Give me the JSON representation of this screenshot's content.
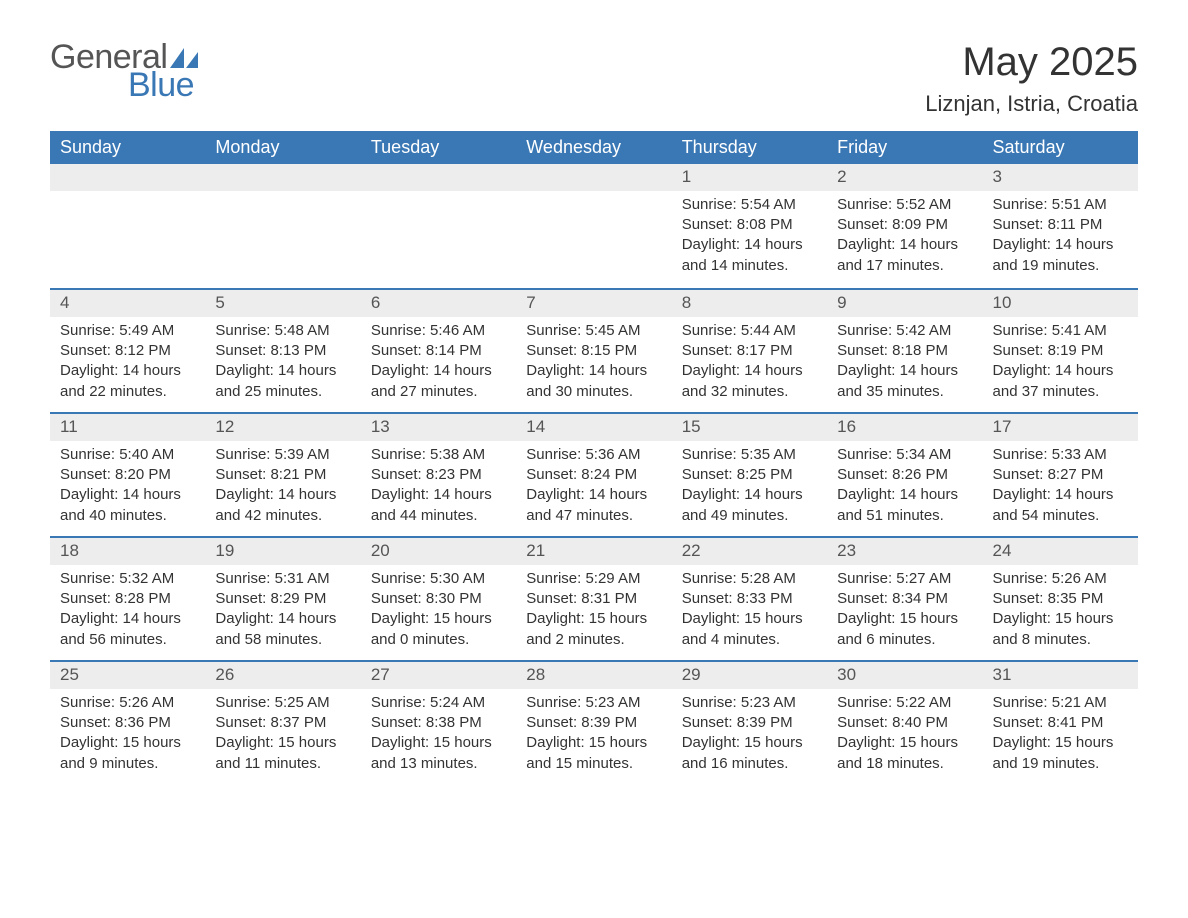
{
  "brand": {
    "general": "General",
    "blue": "Blue",
    "sail_color": "#3a78b5"
  },
  "title": "May 2025",
  "location": "Liznjan, Istria, Croatia",
  "colors": {
    "header_bg": "#3a78b5",
    "header_text": "#ffffff",
    "daynum_bg": "#ededed",
    "text": "#333333",
    "week_border": "#3a78b5",
    "background": "#ffffff"
  },
  "typography": {
    "title_fontsize": 40,
    "subtitle_fontsize": 22,
    "header_cell_fontsize": 18,
    "daynum_fontsize": 17,
    "body_fontsize": 15,
    "font_family": "Arial"
  },
  "layout": {
    "columns": 7,
    "rows": 5,
    "first_day_column": 4
  },
  "day_headers": [
    "Sunday",
    "Monday",
    "Tuesday",
    "Wednesday",
    "Thursday",
    "Friday",
    "Saturday"
  ],
  "weeks": [
    [
      null,
      null,
      null,
      null,
      {
        "n": "1",
        "sunrise": "Sunrise: 5:54 AM",
        "sunset": "Sunset: 8:08 PM",
        "day1": "Daylight: 14 hours",
        "day2": "and 14 minutes."
      },
      {
        "n": "2",
        "sunrise": "Sunrise: 5:52 AM",
        "sunset": "Sunset: 8:09 PM",
        "day1": "Daylight: 14 hours",
        "day2": "and 17 minutes."
      },
      {
        "n": "3",
        "sunrise": "Sunrise: 5:51 AM",
        "sunset": "Sunset: 8:11 PM",
        "day1": "Daylight: 14 hours",
        "day2": "and 19 minutes."
      }
    ],
    [
      {
        "n": "4",
        "sunrise": "Sunrise: 5:49 AM",
        "sunset": "Sunset: 8:12 PM",
        "day1": "Daylight: 14 hours",
        "day2": "and 22 minutes."
      },
      {
        "n": "5",
        "sunrise": "Sunrise: 5:48 AM",
        "sunset": "Sunset: 8:13 PM",
        "day1": "Daylight: 14 hours",
        "day2": "and 25 minutes."
      },
      {
        "n": "6",
        "sunrise": "Sunrise: 5:46 AM",
        "sunset": "Sunset: 8:14 PM",
        "day1": "Daylight: 14 hours",
        "day2": "and 27 minutes."
      },
      {
        "n": "7",
        "sunrise": "Sunrise: 5:45 AM",
        "sunset": "Sunset: 8:15 PM",
        "day1": "Daylight: 14 hours",
        "day2": "and 30 minutes."
      },
      {
        "n": "8",
        "sunrise": "Sunrise: 5:44 AM",
        "sunset": "Sunset: 8:17 PM",
        "day1": "Daylight: 14 hours",
        "day2": "and 32 minutes."
      },
      {
        "n": "9",
        "sunrise": "Sunrise: 5:42 AM",
        "sunset": "Sunset: 8:18 PM",
        "day1": "Daylight: 14 hours",
        "day2": "and 35 minutes."
      },
      {
        "n": "10",
        "sunrise": "Sunrise: 5:41 AM",
        "sunset": "Sunset: 8:19 PM",
        "day1": "Daylight: 14 hours",
        "day2": "and 37 minutes."
      }
    ],
    [
      {
        "n": "11",
        "sunrise": "Sunrise: 5:40 AM",
        "sunset": "Sunset: 8:20 PM",
        "day1": "Daylight: 14 hours",
        "day2": "and 40 minutes."
      },
      {
        "n": "12",
        "sunrise": "Sunrise: 5:39 AM",
        "sunset": "Sunset: 8:21 PM",
        "day1": "Daylight: 14 hours",
        "day2": "and 42 minutes."
      },
      {
        "n": "13",
        "sunrise": "Sunrise: 5:38 AM",
        "sunset": "Sunset: 8:23 PM",
        "day1": "Daylight: 14 hours",
        "day2": "and 44 minutes."
      },
      {
        "n": "14",
        "sunrise": "Sunrise: 5:36 AM",
        "sunset": "Sunset: 8:24 PM",
        "day1": "Daylight: 14 hours",
        "day2": "and 47 minutes."
      },
      {
        "n": "15",
        "sunrise": "Sunrise: 5:35 AM",
        "sunset": "Sunset: 8:25 PM",
        "day1": "Daylight: 14 hours",
        "day2": "and 49 minutes."
      },
      {
        "n": "16",
        "sunrise": "Sunrise: 5:34 AM",
        "sunset": "Sunset: 8:26 PM",
        "day1": "Daylight: 14 hours",
        "day2": "and 51 minutes."
      },
      {
        "n": "17",
        "sunrise": "Sunrise: 5:33 AM",
        "sunset": "Sunset: 8:27 PM",
        "day1": "Daylight: 14 hours",
        "day2": "and 54 minutes."
      }
    ],
    [
      {
        "n": "18",
        "sunrise": "Sunrise: 5:32 AM",
        "sunset": "Sunset: 8:28 PM",
        "day1": "Daylight: 14 hours",
        "day2": "and 56 minutes."
      },
      {
        "n": "19",
        "sunrise": "Sunrise: 5:31 AM",
        "sunset": "Sunset: 8:29 PM",
        "day1": "Daylight: 14 hours",
        "day2": "and 58 minutes."
      },
      {
        "n": "20",
        "sunrise": "Sunrise: 5:30 AM",
        "sunset": "Sunset: 8:30 PM",
        "day1": "Daylight: 15 hours",
        "day2": "and 0 minutes."
      },
      {
        "n": "21",
        "sunrise": "Sunrise: 5:29 AM",
        "sunset": "Sunset: 8:31 PM",
        "day1": "Daylight: 15 hours",
        "day2": "and 2 minutes."
      },
      {
        "n": "22",
        "sunrise": "Sunrise: 5:28 AM",
        "sunset": "Sunset: 8:33 PM",
        "day1": "Daylight: 15 hours",
        "day2": "and 4 minutes."
      },
      {
        "n": "23",
        "sunrise": "Sunrise: 5:27 AM",
        "sunset": "Sunset: 8:34 PM",
        "day1": "Daylight: 15 hours",
        "day2": "and 6 minutes."
      },
      {
        "n": "24",
        "sunrise": "Sunrise: 5:26 AM",
        "sunset": "Sunset: 8:35 PM",
        "day1": "Daylight: 15 hours",
        "day2": "and 8 minutes."
      }
    ],
    [
      {
        "n": "25",
        "sunrise": "Sunrise: 5:26 AM",
        "sunset": "Sunset: 8:36 PM",
        "day1": "Daylight: 15 hours",
        "day2": "and 9 minutes."
      },
      {
        "n": "26",
        "sunrise": "Sunrise: 5:25 AM",
        "sunset": "Sunset: 8:37 PM",
        "day1": "Daylight: 15 hours",
        "day2": "and 11 minutes."
      },
      {
        "n": "27",
        "sunrise": "Sunrise: 5:24 AM",
        "sunset": "Sunset: 8:38 PM",
        "day1": "Daylight: 15 hours",
        "day2": "and 13 minutes."
      },
      {
        "n": "28",
        "sunrise": "Sunrise: 5:23 AM",
        "sunset": "Sunset: 8:39 PM",
        "day1": "Daylight: 15 hours",
        "day2": "and 15 minutes."
      },
      {
        "n": "29",
        "sunrise": "Sunrise: 5:23 AM",
        "sunset": "Sunset: 8:39 PM",
        "day1": "Daylight: 15 hours",
        "day2": "and 16 minutes."
      },
      {
        "n": "30",
        "sunrise": "Sunrise: 5:22 AM",
        "sunset": "Sunset: 8:40 PM",
        "day1": "Daylight: 15 hours",
        "day2": "and 18 minutes."
      },
      {
        "n": "31",
        "sunrise": "Sunrise: 5:21 AM",
        "sunset": "Sunset: 8:41 PM",
        "day1": "Daylight: 15 hours",
        "day2": "and 19 minutes."
      }
    ]
  ]
}
